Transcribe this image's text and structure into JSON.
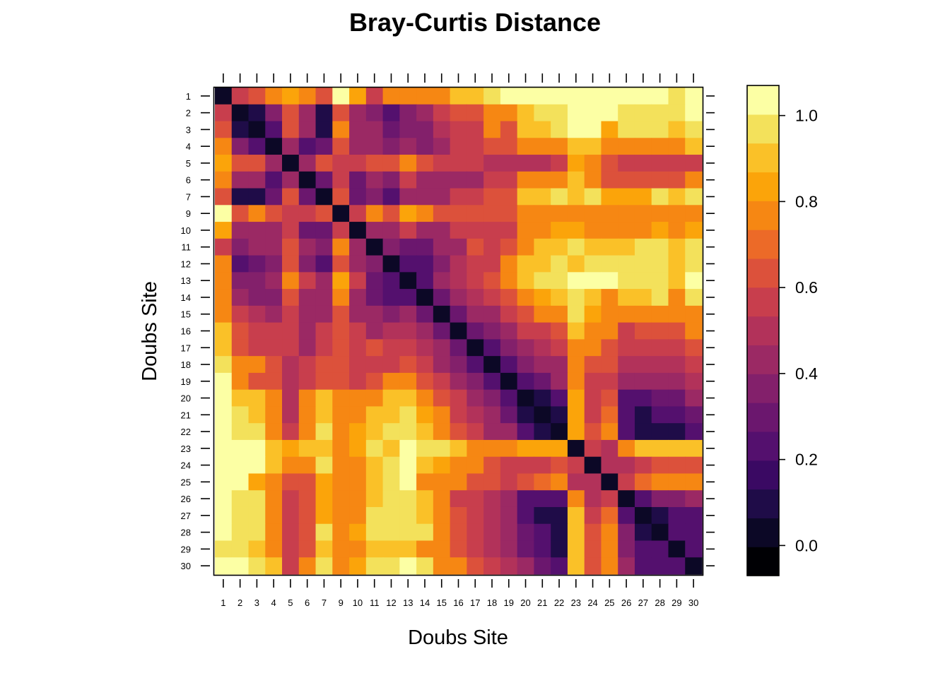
{
  "chart_data": {
    "type": "heatmap",
    "title": "Bray-Curtis Distance",
    "xlabel": "Doubs Site",
    "ylabel": "Doubs Site",
    "sites": [
      "1",
      "2",
      "3",
      "4",
      "5",
      "6",
      "7",
      "9",
      "10",
      "11",
      "12",
      "13",
      "14",
      "15",
      "16",
      "17",
      "18",
      "19",
      "20",
      "21",
      "22",
      "23",
      "24",
      "25",
      "26",
      "27",
      "28",
      "29",
      "30"
    ],
    "values": [
      [
        0.0,
        0.6,
        0.65,
        0.75,
        0.85,
        0.75,
        0.65,
        1.05,
        0.85,
        0.6,
        0.75,
        0.75,
        0.8,
        0.8,
        0.9,
        0.9,
        0.95,
        1.05,
        1.05,
        1.05,
        1.05,
        1.05,
        1.05,
        1.05,
        1.05,
        1.05,
        1.05,
        0.95,
        1.05
      ],
      [
        0.6,
        0.0,
        0.12,
        0.35,
        0.65,
        0.4,
        0.12,
        0.65,
        0.4,
        0.35,
        0.22,
        0.35,
        0.4,
        0.55,
        0.65,
        0.65,
        0.75,
        0.8,
        0.9,
        0.95,
        0.95,
        1.05,
        1.05,
        1.05,
        0.95,
        0.95,
        0.95,
        0.95,
        1.05
      ],
      [
        0.65,
        0.12,
        0.0,
        0.22,
        0.65,
        0.4,
        0.12,
        0.75,
        0.4,
        0.4,
        0.3,
        0.35,
        0.35,
        0.5,
        0.6,
        0.6,
        0.75,
        0.65,
        0.9,
        0.9,
        0.95,
        1.05,
        1.05,
        0.85,
        0.95,
        0.95,
        0.95,
        0.9,
        0.95
      ],
      [
        0.75,
        0.35,
        0.22,
        0.0,
        0.45,
        0.22,
        0.3,
        0.65,
        0.4,
        0.45,
        0.35,
        0.45,
        0.35,
        0.45,
        0.55,
        0.55,
        0.65,
        0.65,
        0.75,
        0.75,
        0.8,
        0.9,
        0.9,
        0.8,
        0.75,
        0.8,
        0.8,
        0.8,
        0.9
      ],
      [
        0.85,
        0.65,
        0.65,
        0.45,
        0.0,
        0.45,
        0.65,
        0.6,
        0.55,
        0.65,
        0.65,
        0.75,
        0.65,
        0.6,
        0.55,
        0.55,
        0.5,
        0.5,
        0.5,
        0.5,
        0.55,
        0.85,
        0.8,
        0.65,
        0.55,
        0.55,
        0.6,
        0.55,
        0.6
      ],
      [
        0.75,
        0.4,
        0.4,
        0.22,
        0.45,
        0.0,
        0.3,
        0.55,
        0.3,
        0.45,
        0.35,
        0.55,
        0.45,
        0.45,
        0.45,
        0.45,
        0.55,
        0.55,
        0.75,
        0.75,
        0.75,
        0.9,
        0.8,
        0.65,
        0.65,
        0.65,
        0.65,
        0.65,
        0.75
      ],
      [
        0.65,
        0.12,
        0.12,
        0.3,
        0.65,
        0.3,
        0.0,
        0.65,
        0.3,
        0.35,
        0.22,
        0.4,
        0.4,
        0.45,
        0.55,
        0.6,
        0.65,
        0.65,
        0.9,
        0.9,
        0.95,
        0.9,
        0.95,
        0.85,
        0.85,
        0.85,
        0.95,
        0.9,
        0.95
      ],
      [
        1.05,
        0.65,
        0.75,
        0.65,
        0.6,
        0.55,
        0.65,
        0.0,
        0.6,
        0.75,
        0.65,
        0.85,
        0.75,
        0.65,
        0.65,
        0.65,
        0.65,
        0.65,
        0.75,
        0.75,
        0.75,
        0.75,
        0.75,
        0.8,
        0.75,
        0.75,
        0.75,
        0.75,
        0.8
      ],
      [
        0.85,
        0.4,
        0.4,
        0.4,
        0.55,
        0.3,
        0.3,
        0.6,
        0.0,
        0.45,
        0.45,
        0.55,
        0.45,
        0.4,
        0.55,
        0.55,
        0.6,
        0.6,
        0.75,
        0.8,
        0.85,
        0.85,
        0.8,
        0.75,
        0.8,
        0.8,
        0.85,
        0.8,
        0.85
      ],
      [
        0.6,
        0.35,
        0.4,
        0.45,
        0.65,
        0.45,
        0.35,
        0.75,
        0.45,
        0.0,
        0.35,
        0.3,
        0.3,
        0.45,
        0.45,
        0.65,
        0.6,
        0.65,
        0.8,
        0.9,
        0.9,
        0.95,
        0.9,
        0.9,
        0.9,
        0.95,
        0.95,
        0.9,
        0.95
      ],
      [
        0.75,
        0.22,
        0.3,
        0.35,
        0.65,
        0.35,
        0.22,
        0.65,
        0.45,
        0.35,
        0.0,
        0.22,
        0.25,
        0.35,
        0.5,
        0.55,
        0.6,
        0.75,
        0.9,
        0.9,
        0.95,
        0.9,
        0.95,
        0.95,
        0.95,
        0.95,
        0.95,
        0.9,
        0.95
      ],
      [
        0.75,
        0.35,
        0.35,
        0.45,
        0.75,
        0.55,
        0.4,
        0.85,
        0.55,
        0.3,
        0.22,
        0.0,
        0.22,
        0.4,
        0.5,
        0.6,
        0.65,
        0.8,
        0.9,
        0.95,
        0.95,
        1.05,
        1.05,
        1.05,
        0.95,
        0.95,
        0.95,
        0.9,
        1.05
      ],
      [
        0.8,
        0.4,
        0.35,
        0.35,
        0.65,
        0.45,
        0.4,
        0.75,
        0.45,
        0.3,
        0.25,
        0.22,
        0.0,
        0.3,
        0.45,
        0.5,
        0.55,
        0.65,
        0.8,
        0.85,
        0.9,
        0.95,
        0.9,
        0.8,
        0.9,
        0.9,
        0.95,
        0.8,
        0.95
      ],
      [
        0.8,
        0.55,
        0.5,
        0.45,
        0.6,
        0.45,
        0.45,
        0.65,
        0.4,
        0.45,
        0.35,
        0.4,
        0.3,
        0.0,
        0.3,
        0.4,
        0.45,
        0.55,
        0.65,
        0.75,
        0.75,
        0.95,
        0.85,
        0.8,
        0.75,
        0.75,
        0.8,
        0.75,
        0.8
      ],
      [
        0.9,
        0.65,
        0.6,
        0.55,
        0.55,
        0.45,
        0.55,
        0.65,
        0.55,
        0.45,
        0.5,
        0.5,
        0.45,
        0.3,
        0.0,
        0.3,
        0.35,
        0.45,
        0.6,
        0.6,
        0.65,
        0.9,
        0.8,
        0.75,
        0.6,
        0.65,
        0.65,
        0.65,
        0.75
      ],
      [
        0.9,
        0.65,
        0.6,
        0.55,
        0.55,
        0.45,
        0.6,
        0.65,
        0.55,
        0.65,
        0.55,
        0.6,
        0.5,
        0.4,
        0.3,
        0.0,
        0.2,
        0.35,
        0.45,
        0.5,
        0.6,
        0.8,
        0.75,
        0.65,
        0.55,
        0.55,
        0.6,
        0.55,
        0.65
      ],
      [
        0.95,
        0.75,
        0.75,
        0.65,
        0.5,
        0.55,
        0.65,
        0.65,
        0.6,
        0.6,
        0.6,
        0.65,
        0.55,
        0.45,
        0.35,
        0.2,
        0.0,
        0.25,
        0.35,
        0.4,
        0.45,
        0.8,
        0.65,
        0.65,
        0.5,
        0.5,
        0.5,
        0.5,
        0.55
      ],
      [
        1.05,
        0.8,
        0.65,
        0.65,
        0.5,
        0.55,
        0.65,
        0.65,
        0.6,
        0.65,
        0.75,
        0.8,
        0.65,
        0.55,
        0.45,
        0.35,
        0.25,
        0.0,
        0.25,
        0.3,
        0.4,
        0.8,
        0.6,
        0.6,
        0.4,
        0.45,
        0.45,
        0.45,
        0.5
      ],
      [
        1.05,
        0.9,
        0.9,
        0.75,
        0.5,
        0.75,
        0.9,
        0.75,
        0.75,
        0.8,
        0.9,
        0.9,
        0.8,
        0.65,
        0.6,
        0.45,
        0.35,
        0.25,
        0.0,
        0.12,
        0.25,
        0.85,
        0.6,
        0.65,
        0.2,
        0.2,
        0.3,
        0.3,
        0.4
      ],
      [
        1.05,
        0.95,
        0.9,
        0.75,
        0.5,
        0.75,
        0.9,
        0.75,
        0.8,
        0.9,
        0.9,
        0.95,
        0.85,
        0.75,
        0.6,
        0.5,
        0.4,
        0.3,
        0.12,
        0.0,
        0.12,
        0.85,
        0.6,
        0.7,
        0.2,
        0.12,
        0.25,
        0.25,
        0.3
      ],
      [
        1.05,
        0.95,
        0.95,
        0.8,
        0.55,
        0.75,
        0.95,
        0.75,
        0.85,
        0.9,
        0.95,
        0.95,
        0.9,
        0.75,
        0.65,
        0.6,
        0.45,
        0.4,
        0.25,
        0.12,
        0.0,
        0.85,
        0.65,
        0.75,
        0.25,
        0.12,
        0.12,
        0.12,
        0.25
      ],
      [
        1.05,
        1.05,
        1.05,
        0.9,
        0.85,
        0.9,
        0.9,
        0.75,
        0.85,
        0.95,
        0.9,
        1.05,
        0.95,
        0.95,
        0.9,
        0.8,
        0.8,
        0.8,
        0.85,
        0.85,
        0.85,
        0.0,
        0.6,
        0.5,
        0.75,
        0.9,
        0.9,
        0.9,
        0.9
      ],
      [
        1.05,
        1.05,
        1.05,
        0.9,
        0.8,
        0.8,
        0.95,
        0.75,
        0.8,
        0.9,
        0.95,
        1.05,
        0.9,
        0.85,
        0.8,
        0.75,
        0.65,
        0.6,
        0.6,
        0.6,
        0.65,
        0.6,
        0.0,
        0.5,
        0.5,
        0.55,
        0.65,
        0.65,
        0.65
      ],
      [
        1.05,
        1.05,
        0.85,
        0.8,
        0.65,
        0.65,
        0.85,
        0.8,
        0.75,
        0.9,
        0.95,
        1.05,
        0.8,
        0.8,
        0.75,
        0.65,
        0.65,
        0.6,
        0.65,
        0.7,
        0.75,
        0.5,
        0.5,
        0.0,
        0.6,
        0.7,
        0.75,
        0.75,
        0.75
      ],
      [
        1.05,
        0.95,
        0.95,
        0.75,
        0.55,
        0.65,
        0.85,
        0.75,
        0.8,
        0.9,
        0.95,
        0.95,
        0.9,
        0.75,
        0.6,
        0.55,
        0.5,
        0.4,
        0.2,
        0.2,
        0.25,
        0.75,
        0.5,
        0.6,
        0.0,
        0.2,
        0.35,
        0.35,
        0.45
      ],
      [
        1.05,
        0.95,
        0.95,
        0.8,
        0.55,
        0.65,
        0.85,
        0.75,
        0.8,
        0.95,
        0.95,
        0.95,
        0.9,
        0.75,
        0.65,
        0.55,
        0.5,
        0.45,
        0.2,
        0.12,
        0.12,
        0.9,
        0.55,
        0.7,
        0.2,
        0.0,
        0.12,
        0.25,
        0.25
      ],
      [
        1.05,
        0.95,
        0.95,
        0.8,
        0.6,
        0.65,
        0.95,
        0.75,
        0.85,
        0.95,
        0.95,
        0.95,
        0.95,
        0.8,
        0.65,
        0.6,
        0.5,
        0.45,
        0.3,
        0.25,
        0.12,
        0.9,
        0.65,
        0.75,
        0.35,
        0.12,
        0.0,
        0.25,
        0.25
      ],
      [
        0.95,
        0.95,
        0.9,
        0.8,
        0.55,
        0.65,
        0.9,
        0.75,
        0.8,
        0.9,
        0.9,
        0.9,
        0.8,
        0.75,
        0.65,
        0.55,
        0.5,
        0.45,
        0.3,
        0.25,
        0.12,
        0.9,
        0.65,
        0.75,
        0.35,
        0.25,
        0.25,
        0.0,
        0.25
      ],
      [
        1.05,
        1.05,
        0.95,
        0.9,
        0.6,
        0.75,
        0.95,
        0.8,
        0.85,
        0.95,
        0.95,
        1.05,
        0.95,
        0.8,
        0.75,
        0.65,
        0.55,
        0.5,
        0.4,
        0.3,
        0.25,
        0.9,
        0.65,
        0.75,
        0.45,
        0.25,
        0.25,
        0.25,
        0.0
      ]
    ],
    "colorbar": {
      "ticks": [
        "0.0",
        "0.2",
        "0.4",
        "0.6",
        "0.8",
        "1.0"
      ],
      "tick_values": [
        0.0,
        0.2,
        0.4,
        0.6,
        0.8,
        1.0
      ],
      "range": [
        -0.07,
        1.07
      ],
      "colors": [
        "#000004",
        "#0c0826",
        "#1f0c48",
        "#3a0963",
        "#54106e",
        "#6b176e",
        "#83206b",
        "#9b2964",
        "#b2325a",
        "#c83e4d",
        "#dc513b",
        "#ec6a28",
        "#f68713",
        "#fba40a",
        "#fac128",
        "#f3e15b",
        "#fcffa4"
      ]
    },
    "grid": false,
    "legend": "right"
  }
}
